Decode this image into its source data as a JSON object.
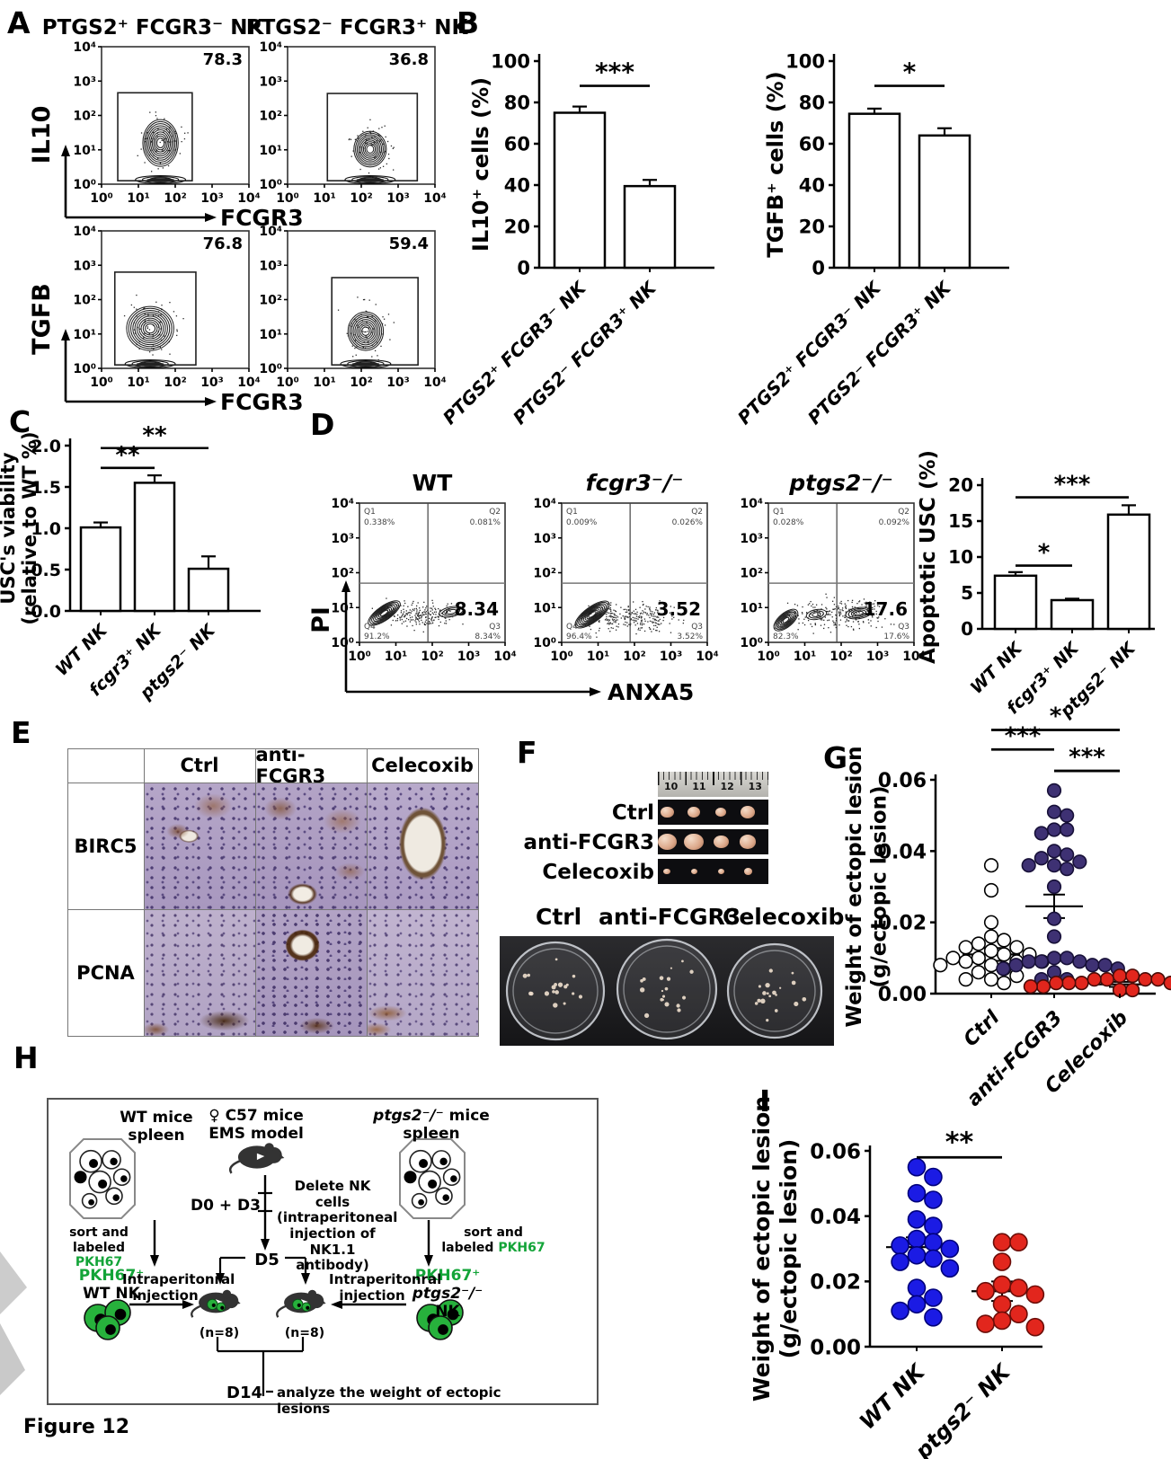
{
  "figure_label": "Figure 12",
  "flow_ticks": [
    "10⁰",
    "10¹",
    "10²",
    "10³",
    "10⁴"
  ],
  "panels": {
    "A": {
      "label": "A",
      "col_titles": [
        "PTGS2⁺ FCGR3⁻ NK",
        "PTGS2⁻ FCGR3⁺ NK"
      ],
      "x_axis": "FCGR3",
      "rows": [
        {
          "y_axis": "IL10",
          "gate_values": [
            "78.3",
            "36.8"
          ]
        },
        {
          "y_axis": "TGFB",
          "gate_values": [
            "76.8",
            "59.4"
          ]
        }
      ]
    },
    "B": {
      "label": "B",
      "charts": [
        {
          "type": "bar",
          "ylabel": "IL10⁺ cells (%)",
          "ymax": 100,
          "yticks": [
            "0",
            "20",
            "40",
            "60",
            "80",
            "100"
          ],
          "categories": [
            "PTGS2⁺ FCGR3⁻ NK",
            "PTGS2⁻ FCGR3⁺ NK"
          ],
          "values": [
            75,
            39.5
          ],
          "errors": [
            3,
            3
          ],
          "sig": [
            {
              "from": 0,
              "to": 1,
              "label": "***",
              "y": 88
            }
          ]
        },
        {
          "type": "bar",
          "ylabel": "TGFB⁺ cells (%)",
          "ymax": 100,
          "yticks": [
            "0",
            "20",
            "40",
            "60",
            "80",
            "100"
          ],
          "categories": [
            "PTGS2⁺ FCGR3⁻ NK",
            "PTGS2⁻ FCGR3⁺ NK"
          ],
          "values": [
            74.5,
            64
          ],
          "errors": [
            2.5,
            3.5
          ],
          "sig": [
            {
              "from": 0,
              "to": 1,
              "label": "*",
              "y": 88
            }
          ]
        }
      ]
    },
    "C": {
      "label": "C",
      "chart": {
        "type": "bar",
        "ylabel_lines": [
          "USC's viability",
          "(relative to WT %)"
        ],
        "ymax": 2.0,
        "yticks": [
          "0.0",
          "0.5",
          "1.0",
          "1.5",
          "2.0"
        ],
        "categories": [
          "WT NK",
          "fcgr3⁺ NK",
          "ptgs2⁻ NK"
        ],
        "values": [
          1.01,
          1.55,
          0.51
        ],
        "errors": [
          0.06,
          0.09,
          0.15
        ],
        "sig": [
          {
            "from": 0,
            "to": 1,
            "label": "**",
            "y": 1.73
          },
          {
            "from": 0,
            "to": 2,
            "label": "**",
            "y": 1.97
          }
        ]
      }
    },
    "D": {
      "label": "D",
      "x_axis": "ANXA5",
      "y_axis": "PI",
      "plots": [
        {
          "title": "WT",
          "italic": false,
          "value": "8.34",
          "quadrants": {
            "q1_label": "Q1",
            "q1": "0.338%",
            "q2_label": "Q2",
            "q2": "0.081%",
            "q4_label": "Q4",
            "q4": "91.2%",
            "q3_label": "Q3",
            "q3": "8.34%"
          }
        },
        {
          "title": "fcgr3⁻/⁻",
          "italic": true,
          "value": "3.52",
          "quadrants": {
            "q1_label": "Q1",
            "q1": "0.009%",
            "q2_label": "Q2",
            "q2": "0.026%",
            "q4_label": "Q4",
            "q4": "96.4%",
            "q3_label": "Q3",
            "q3": "3.52%"
          }
        },
        {
          "title": "ptgs2⁻/⁻",
          "italic": true,
          "value": "17.6",
          "quadrants": {
            "q1_label": "Q1",
            "q1": "0.028%",
            "q2_label": "Q2",
            "q2": "0.092%",
            "q4_label": "Q4",
            "q4": "82.3%",
            "q3_label": "Q3",
            "q3": "17.6%"
          }
        }
      ],
      "chart": {
        "type": "bar",
        "ylabel": "Apoptotic USC (%)",
        "ymax": 20,
        "yticks": [
          "0",
          "5",
          "10",
          "15",
          "20"
        ],
        "categories": [
          "WT NK",
          "fcgr3⁺ NK",
          "ptgs2⁻ NK"
        ],
        "values": [
          7.4,
          4.0,
          15.9
        ],
        "errors": [
          0.5,
          0.2,
          1.3
        ],
        "sig": [
          {
            "from": 0,
            "to": 1,
            "label": "*",
            "y": 8.8
          },
          {
            "from": 0,
            "to": 2,
            "label": "***",
            "y": 18.3
          }
        ]
      }
    },
    "E": {
      "label": "E",
      "col_headers": [
        "Ctrl",
        "anti-FCGR3",
        "Celecoxib"
      ],
      "row_headers": [
        "BIRC5",
        "PCNA"
      ]
    },
    "F": {
      "label": "F",
      "ruler_numbers": [
        "10",
        "11",
        "12",
        "13"
      ],
      "strip_labels": [
        "Ctrl",
        "anti-FCGR3",
        "Celecoxib"
      ],
      "dish_labels": [
        "Ctrl",
        "anti-FCGR3",
        "Celecoxib"
      ]
    },
    "G": {
      "label": "G",
      "chart": {
        "type": "scatter",
        "ylabel_lines": [
          "Weight of ectopic lesion",
          "(g/ectopic lesion)"
        ],
        "ymax": 0.06,
        "yticks": [
          "0.00",
          "0.02",
          "0.04",
          "0.06"
        ],
        "groups": [
          {
            "name": "Ctrl",
            "fill": "#ffffff",
            "stroke": "#000000",
            "mean": 0.011,
            "sem": 0.0018,
            "points": [
              0.036,
              0.029,
              0.02,
              0.016,
              0.015,
              0.014,
              0.013,
              0.013,
              0.012,
              0.011,
              0.011,
              0.01,
              0.01,
              0.009,
              0.009,
              0.009,
              0.008,
              0.008,
              0.007,
              0.006,
              0.005,
              0.004,
              0.004,
              0.003
            ]
          },
          {
            "name": "anti-FCGR3",
            "fill": "#3e3173",
            "stroke": "#171038",
            "mean": 0.0245,
            "sem": 0.0033,
            "points": [
              0.057,
              0.051,
              0.05,
              0.046,
              0.046,
              0.045,
              0.04,
              0.039,
              0.038,
              0.037,
              0.036,
              0.036,
              0.035,
              0.03,
              0.021,
              0.016,
              0.01,
              0.01,
              0.009,
              0.009,
              0.009,
              0.008,
              0.008,
              0.008,
              0.007,
              0.007,
              0.006,
              0.004,
              0.004
            ]
          },
          {
            "name": "Celecoxib",
            "fill": "#e2261d",
            "stroke": "#4a0c08",
            "mean": 0.0026,
            "sem": 0.0007,
            "points": [
              0.005,
              0.005,
              0.004,
              0.004,
              0.004,
              0.004,
              0.003,
              0.003,
              0.003,
              0.003,
              0.003,
              0.002,
              0.002,
              0.002,
              0.002,
              0.001,
              0.001
            ]
          }
        ],
        "sig": [
          {
            "from": 0,
            "to": 1,
            "label": "***",
            "y": 0.0685
          },
          {
            "from": 1,
            "to": 2,
            "label": "***",
            "y": 0.0625
          },
          {
            "from": 0,
            "to": 2,
            "label": "*",
            "y": 0.074
          }
        ]
      }
    },
    "H": {
      "label": "H",
      "left": {
        "title_lines": [
          "WT mice",
          "spleen"
        ],
        "sort_line1": "sort and",
        "sort_line2_prefix": "labeled ",
        "sort_line2_green": "PKH67",
        "cell_label_green": "PKH67⁺",
        "cell_label": "WT NK",
        "injection_lines": [
          "Intraperitonral",
          "injection"
        ]
      },
      "center": {
        "title_lines": [
          "♀ C57 mice",
          "EMS model"
        ],
        "d0d3": "D0 + D3",
        "delete_lines": [
          "Delete NK cells",
          "(intraperitoneal",
          "injection of NK1.1",
          "antibody)"
        ],
        "d5": "D5",
        "n_left": "(n=8)",
        "n_right": "(n=8)",
        "d14": "D14",
        "d14_text": "analyze the weight of ectopic lesions"
      },
      "right": {
        "title_italic": "ptgs2⁻/⁻",
        "title_rest": " mice",
        "title_line2": "spleen",
        "sort_line1": "sort and",
        "sort_line2_prefix": "labeled ",
        "sort_line2_green": "PKH67",
        "cell_label_green": "PKH67⁺",
        "cell_label_italic": "ptgs2⁻/⁻",
        "cell_label_rest": " NK",
        "injection_lines": [
          "Intraperitonral",
          "injection"
        ]
      },
      "green_color": "#13a438"
    },
    "I": {
      "label": "I",
      "chart": {
        "type": "scatter",
        "ylabel_lines": [
          "Weight of ectopic lesion",
          "(g/ectopic lesion)"
        ],
        "ymax": 0.06,
        "yticks": [
          "0.00",
          "0.02",
          "0.04",
          "0.06"
        ],
        "groups": [
          {
            "name": "WT NK",
            "fill": "#1b1be4",
            "stroke": "#00007a",
            "mean": 0.0305,
            "sem": 0.003,
            "points": [
              0.055,
              0.052,
              0.047,
              0.045,
              0.039,
              0.037,
              0.033,
              0.032,
              0.031,
              0.03,
              0.028,
              0.027,
              0.026,
              0.024,
              0.018,
              0.015,
              0.013,
              0.011,
              0.009
            ]
          },
          {
            "name": "ptgs2⁻ NK",
            "fill": "#e2261d",
            "stroke": "#6b0d08",
            "mean": 0.017,
            "sem": 0.003,
            "points": [
              0.032,
              0.032,
              0.026,
              0.019,
              0.018,
              0.017,
              0.016,
              0.013,
              0.01,
              0.008,
              0.007,
              0.006
            ]
          }
        ],
        "sig": [
          {
            "from": 0,
            "to": 1,
            "label": "**",
            "y": 0.058
          }
        ]
      }
    }
  }
}
